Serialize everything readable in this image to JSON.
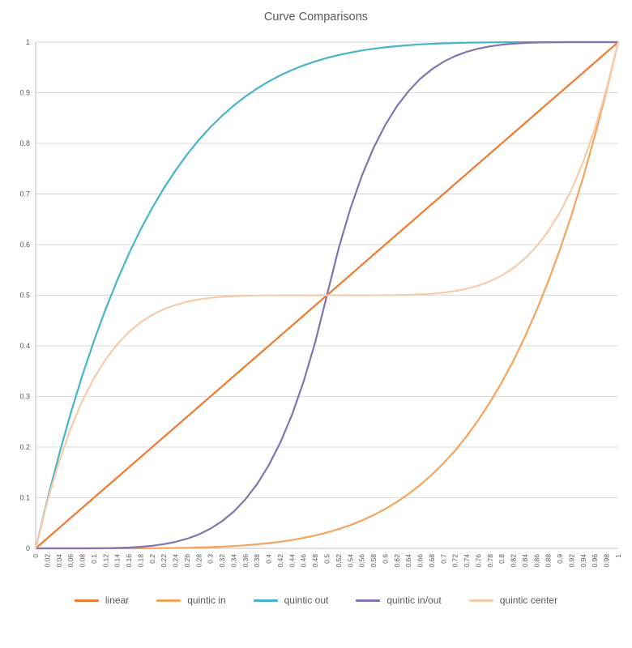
{
  "theme": {
    "background": "#FFFFFF",
    "grid_color": "#D9D9D9",
    "axis_line_color": "#BFBFBF",
    "text_color": "#595959",
    "title_color": "#595959"
  },
  "chart_data": {
    "type": "line",
    "title": "Curve Comparisons",
    "xlabel": "",
    "ylabel": "",
    "xlim": [
      0,
      1
    ],
    "ylim": [
      0,
      1
    ],
    "grid": "horizontal-major",
    "legend_position": "bottom",
    "x": [
      0,
      0.02,
      0.04,
      0.06,
      0.08,
      0.1,
      0.12,
      0.14,
      0.16,
      0.18,
      0.2,
      0.22,
      0.24,
      0.26,
      0.28,
      0.3,
      0.32,
      0.34,
      0.36,
      0.38,
      0.4,
      0.42,
      0.44,
      0.46,
      0.48,
      0.5,
      0.52,
      0.54,
      0.56,
      0.58,
      0.6,
      0.62,
      0.64,
      0.66,
      0.68,
      0.7,
      0.72,
      0.74,
      0.76,
      0.78,
      0.8,
      0.82,
      0.84,
      0.86,
      0.88,
      0.9,
      0.92,
      0.94,
      0.96,
      0.98,
      1
    ],
    "x_tick_labels": [
      "0",
      "0.02",
      "0.04",
      "0.06",
      "0.08",
      "0.1",
      "0.12",
      "0.14",
      "0.16",
      "0.18",
      "0.2",
      "0.22",
      "0.24",
      "0.26",
      "0.28",
      "0.3",
      "0.32",
      "0.34",
      "0.36",
      "0.38",
      "0.4",
      "0.42",
      "0.44",
      "0.46",
      "0.48",
      "0.5",
      "0.52",
      "0.54",
      "0.56",
      "0.58",
      "0.6",
      "0.62",
      "0.64",
      "0.66",
      "0.68",
      "0.7",
      "0.72",
      "0.74",
      "0.76",
      "0.78",
      "0.8",
      "0.82",
      "0.84",
      "0.86",
      "0.88",
      "0.9",
      "0.92",
      "0.94",
      "0.96",
      "0.98",
      "1"
    ],
    "y_ticks": [
      0,
      0.1,
      0.2,
      0.3,
      0.4,
      0.5,
      0.6,
      0.7,
      0.8,
      0.9,
      1
    ],
    "y_tick_labels": [
      "0",
      "0.1",
      "0.2",
      "0.3",
      "0.4",
      "0.5",
      "0.6",
      "0.7",
      "0.8",
      "0.9",
      "1"
    ],
    "series": [
      {
        "name": "linear",
        "color": "#ED7D31",
        "values": [
          0,
          0.02,
          0.04,
          0.06,
          0.08,
          0.1,
          0.12,
          0.14,
          0.16,
          0.18,
          0.2,
          0.22,
          0.24,
          0.26,
          0.28,
          0.3,
          0.32,
          0.34,
          0.36,
          0.38,
          0.4,
          0.42,
          0.44,
          0.46,
          0.48,
          0.5,
          0.52,
          0.54,
          0.56,
          0.58,
          0.6,
          0.62,
          0.64,
          0.66,
          0.68,
          0.7,
          0.72,
          0.74,
          0.76,
          0.78,
          0.8,
          0.82,
          0.84,
          0.86,
          0.88,
          0.9,
          0.92,
          0.94,
          0.96,
          0.98,
          1
        ]
      },
      {
        "name": "quintic in",
        "color": "#F4A45C",
        "values": [
          0,
          0,
          0,
          0,
          0,
          1e-05,
          2e-05,
          5e-05,
          0.0001,
          0.00019,
          0.00032,
          0.00052,
          0.0008,
          0.00119,
          0.00172,
          0.00243,
          0.00336,
          0.00454,
          0.00605,
          0.00792,
          0.01024,
          0.01307,
          0.01649,
          0.0206,
          0.02548,
          0.03125,
          0.03802,
          0.04592,
          0.05507,
          0.06564,
          0.07776,
          0.09161,
          0.10737,
          0.12523,
          0.14539,
          0.16807,
          0.19349,
          0.2219,
          0.25355,
          0.28872,
          0.32768,
          0.37074,
          0.41821,
          0.47043,
          0.52773,
          0.59049,
          0.65908,
          0.7339,
          0.81537,
          0.90392,
          1
        ]
      },
      {
        "name": "quintic out",
        "color": "#46B5C8",
        "values": [
          0,
          0.09608,
          0.18463,
          0.2661,
          0.34092,
          0.40951,
          0.47227,
          0.52957,
          0.58179,
          0.62926,
          0.67232,
          0.71128,
          0.74645,
          0.7781,
          0.80651,
          0.83193,
          0.85461,
          0.87477,
          0.89263,
          0.90839,
          0.92224,
          0.93436,
          0.94493,
          0.95408,
          0.96198,
          0.96875,
          0.97452,
          0.9794,
          0.98351,
          0.98693,
          0.98976,
          0.99208,
          0.99395,
          0.99546,
          0.99664,
          0.99757,
          0.99828,
          0.99881,
          0.9992,
          0.99948,
          0.99968,
          0.99981,
          0.9999,
          0.99995,
          0.99998,
          0.99999,
          1,
          1,
          1,
          1,
          1
        ]
      },
      {
        "name": "quintic in/out",
        "color": "#8573B0",
        "values": [
          0,
          0,
          0,
          1e-05,
          5e-05,
          0.00016,
          0.0004,
          0.00086,
          0.00168,
          0.00302,
          0.00512,
          0.00825,
          0.01274,
          0.01901,
          0.02754,
          0.03888,
          0.05369,
          0.0727,
          0.09675,
          0.12678,
          0.16384,
          0.20911,
          0.26387,
          0.32954,
          0.40769,
          0.5,
          0.59231,
          0.67046,
          0.73613,
          0.79089,
          0.83616,
          0.87322,
          0.90325,
          0.9273,
          0.94631,
          0.96112,
          0.97246,
          0.98099,
          0.98726,
          0.99175,
          0.99488,
          0.99698,
          0.99832,
          0.99914,
          0.9996,
          0.99984,
          0.99995,
          0.99999,
          1,
          1,
          1
        ]
      },
      {
        "name": "quintic center",
        "color": "#F8CBA8",
        "values": [
          0,
          0.09231,
          0.17046,
          0.23613,
          0.29089,
          0.33616,
          0.37322,
          0.40325,
          0.4273,
          0.44631,
          0.46112,
          0.47246,
          0.48099,
          0.48726,
          0.49175,
          0.49488,
          0.49698,
          0.49832,
          0.49914,
          0.4996,
          0.49984,
          0.49995,
          0.49999,
          0.5,
          0.5,
          0.5,
          0.5,
          0.5,
          0.50001,
          0.50005,
          0.50016,
          0.5004,
          0.50086,
          0.50168,
          0.50302,
          0.50512,
          0.50825,
          0.51274,
          0.51901,
          0.52754,
          0.53888,
          0.55369,
          0.5727,
          0.59675,
          0.62678,
          0.66384,
          0.70911,
          0.76387,
          0.82954,
          0.90769,
          1
        ]
      }
    ]
  }
}
